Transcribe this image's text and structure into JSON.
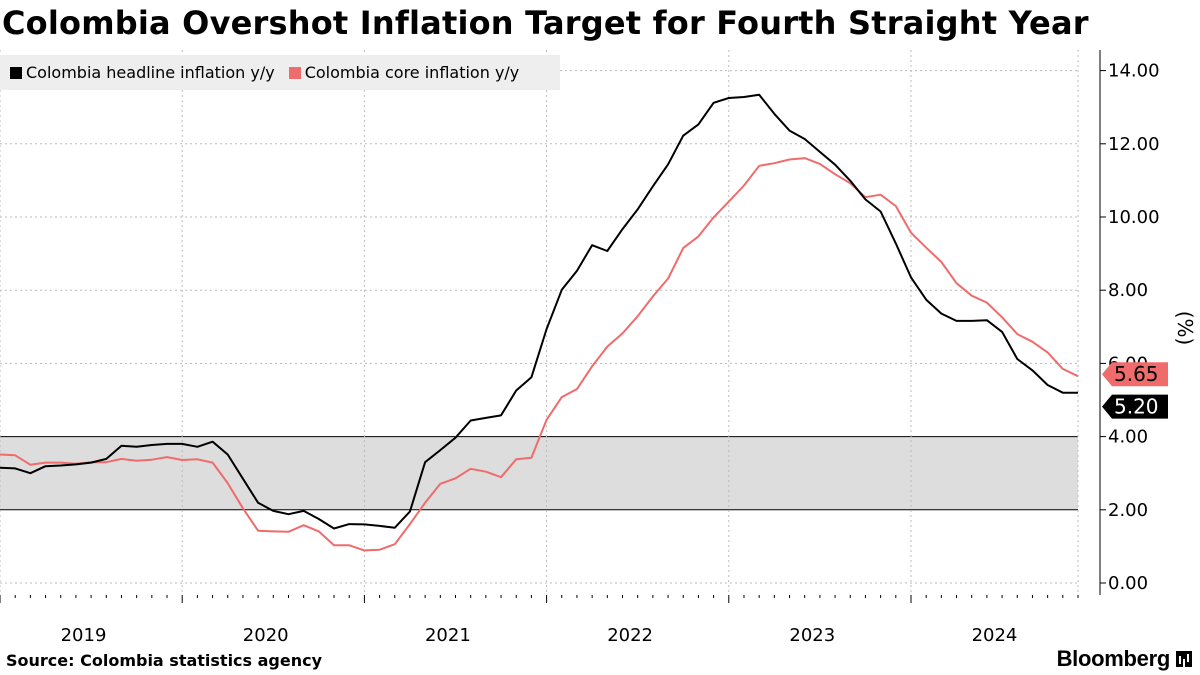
{
  "title": "Colombia Overshot Inflation Target for Fourth Straight Year",
  "source": "Source: Colombia statistics agency",
  "brand": "Bloomberg",
  "colors": {
    "headline": "#000000",
    "core": "#f06b6b",
    "target_band": "#dddddd",
    "grid": "#bbbbbb",
    "legend_bg": "#eeeeee"
  },
  "chart_data": {
    "type": "line",
    "title": "Colombia Overshot Inflation Target for Fourth Straight Year",
    "ylabel": "(%)",
    "ylim": [
      0,
      14.5
    ],
    "yticks": [
      0,
      2,
      4,
      6,
      8,
      10,
      12,
      14
    ],
    "ytick_labels": [
      "0.00",
      "2.00",
      "4.00",
      "6.00",
      "8.00",
      "10.00",
      "12.00",
      "14.00"
    ],
    "y_axis_side": "right",
    "x_start": "2019-01",
    "x_end": "2024-12",
    "xtick_labels": [
      "2019",
      "2020",
      "2021",
      "2022",
      "2023",
      "2024"
    ],
    "target_band": [
      2,
      4
    ],
    "legend_position": "top-left",
    "series": [
      {
        "name": "Colombia headline inflation y/y",
        "key": "headline",
        "values": [
          3.15,
          3.13,
          3.0,
          3.19,
          3.21,
          3.24,
          3.29,
          3.39,
          3.75,
          3.72,
          3.77,
          3.8,
          3.8,
          3.72,
          3.86,
          3.51,
          2.85,
          2.19,
          1.97,
          1.88,
          1.97,
          1.75,
          1.49,
          1.61,
          1.6,
          1.56,
          1.51,
          1.95,
          3.3,
          3.63,
          3.97,
          4.44,
          4.51,
          4.58,
          5.26,
          5.62,
          6.94,
          8.01,
          8.53,
          9.23,
          9.07,
          9.67,
          10.21,
          10.84,
          11.44,
          12.22,
          12.53,
          13.12,
          13.25,
          13.28,
          13.34,
          12.82,
          12.36,
          12.13,
          11.78,
          11.43,
          10.99,
          10.48,
          10.15,
          9.28,
          8.35,
          7.74,
          7.36,
          7.16,
          7.16,
          7.18,
          6.86,
          6.12,
          5.81,
          5.41,
          5.2,
          5.2
        ]
      },
      {
        "name": "Colombia core inflation y/y",
        "key": "core",
        "values": [
          3.51,
          3.49,
          3.23,
          3.29,
          3.29,
          3.26,
          3.3,
          3.3,
          3.39,
          3.34,
          3.37,
          3.44,
          3.36,
          3.38,
          3.29,
          2.73,
          2.04,
          1.43,
          1.41,
          1.4,
          1.58,
          1.41,
          1.03,
          1.03,
          0.89,
          0.91,
          1.06,
          1.61,
          2.19,
          2.71,
          2.86,
          3.12,
          3.04,
          2.89,
          3.38,
          3.42,
          4.46,
          5.08,
          5.3,
          5.92,
          6.46,
          6.82,
          7.29,
          7.83,
          8.32,
          9.15,
          9.47,
          9.99,
          10.42,
          10.86,
          11.4,
          11.47,
          11.57,
          11.61,
          11.45,
          11.17,
          10.92,
          10.54,
          10.61,
          10.3,
          9.57,
          9.16,
          8.77,
          8.19,
          7.85,
          7.66,
          7.26,
          6.8,
          6.59,
          6.3,
          5.85,
          5.65
        ]
      }
    ],
    "last_value_labels": {
      "core": "5.65",
      "headline": "5.20"
    }
  }
}
